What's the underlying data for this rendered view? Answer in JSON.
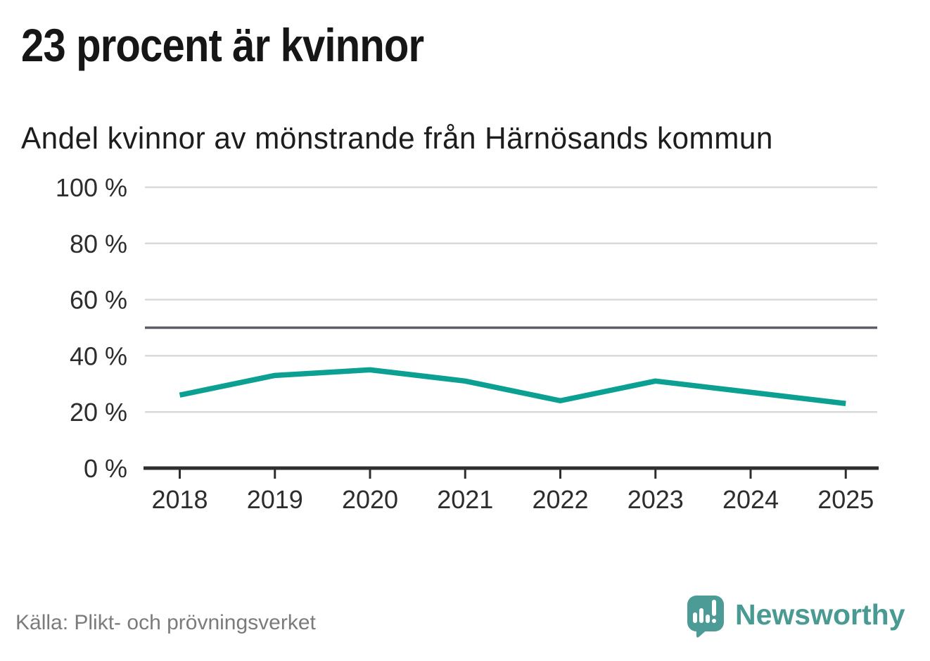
{
  "header": {
    "title": "23 procent är kvinnor",
    "subtitle": "Andel kvinnor av mönstrande från Härnösands kommun"
  },
  "chart_data": {
    "type": "line",
    "title": "23 procent är kvinnor",
    "subtitle": "Andel kvinnor av mönstrande från Härnösands kommun",
    "categories": [
      "2018",
      "2019",
      "2020",
      "2021",
      "2022",
      "2023",
      "2024",
      "2025"
    ],
    "values": [
      26,
      33,
      35,
      31,
      24,
      31,
      27,
      23
    ],
    "unit": "%",
    "ylim": [
      0,
      100
    ],
    "yticks": [
      0,
      20,
      40,
      60,
      80,
      100
    ],
    "ytick_labels": [
      "0 %",
      "20 %",
      "40 %",
      "60 %",
      "80 %",
      "100 %"
    ],
    "reference_line": {
      "value": 50,
      "color": "#5f5c66"
    },
    "grid": true,
    "grid_color": "#d9d9d9",
    "axis_color": "#2f2f2f",
    "label_color": "#2d2d2d",
    "line_color": "#0ba092",
    "legend": "none",
    "xlabel": "",
    "ylabel": ""
  },
  "footer": {
    "source": "Källa: Plikt- och prövningsverket",
    "brand": "Newsworthy"
  },
  "colors": {
    "accent_teal": "#0ba092",
    "logo_teal": "#4d9b96",
    "text_dark": "#161616",
    "text_gray": "#7b7b7b"
  }
}
